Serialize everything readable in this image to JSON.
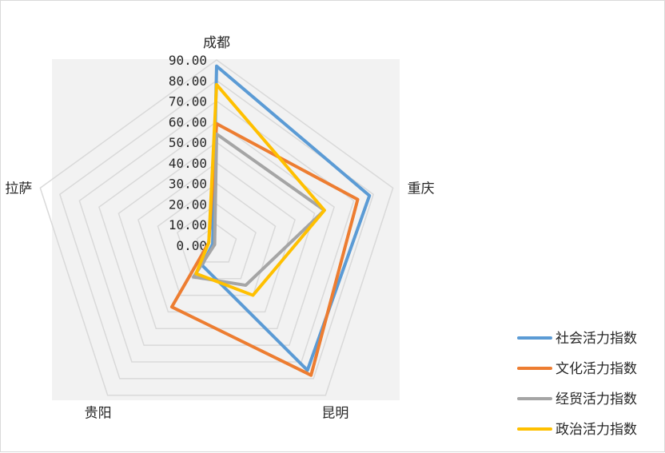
{
  "chart_data": {
    "type": "radar",
    "categories": [
      "成都",
      "重庆",
      "昆明",
      "贵阳",
      "拉萨"
    ],
    "ticks": [
      "0.00",
      "10.00",
      "20.00",
      "30.00",
      "40.00",
      "50.00",
      "60.00",
      "70.00",
      "80.00",
      "90.00"
    ],
    "rlim": [
      0,
      90
    ],
    "grid": true,
    "legend_position": "bottom-right",
    "series": [
      {
        "name": "社会活力指数",
        "color": "#5b9bd5",
        "values": [
          87,
          78,
          75,
          12,
          2
        ]
      },
      {
        "name": "文化活力指数",
        "color": "#ed7d31",
        "values": [
          59,
          72,
          78,
          37,
          4
        ]
      },
      {
        "name": "经贸活力指数",
        "color": "#a5a5a5",
        "values": [
          54,
          55,
          24,
          19,
          1
        ]
      },
      {
        "name": "政治活力指数",
        "color": "#ffc000",
        "values": [
          78,
          55,
          30,
          17,
          4
        ]
      }
    ]
  }
}
